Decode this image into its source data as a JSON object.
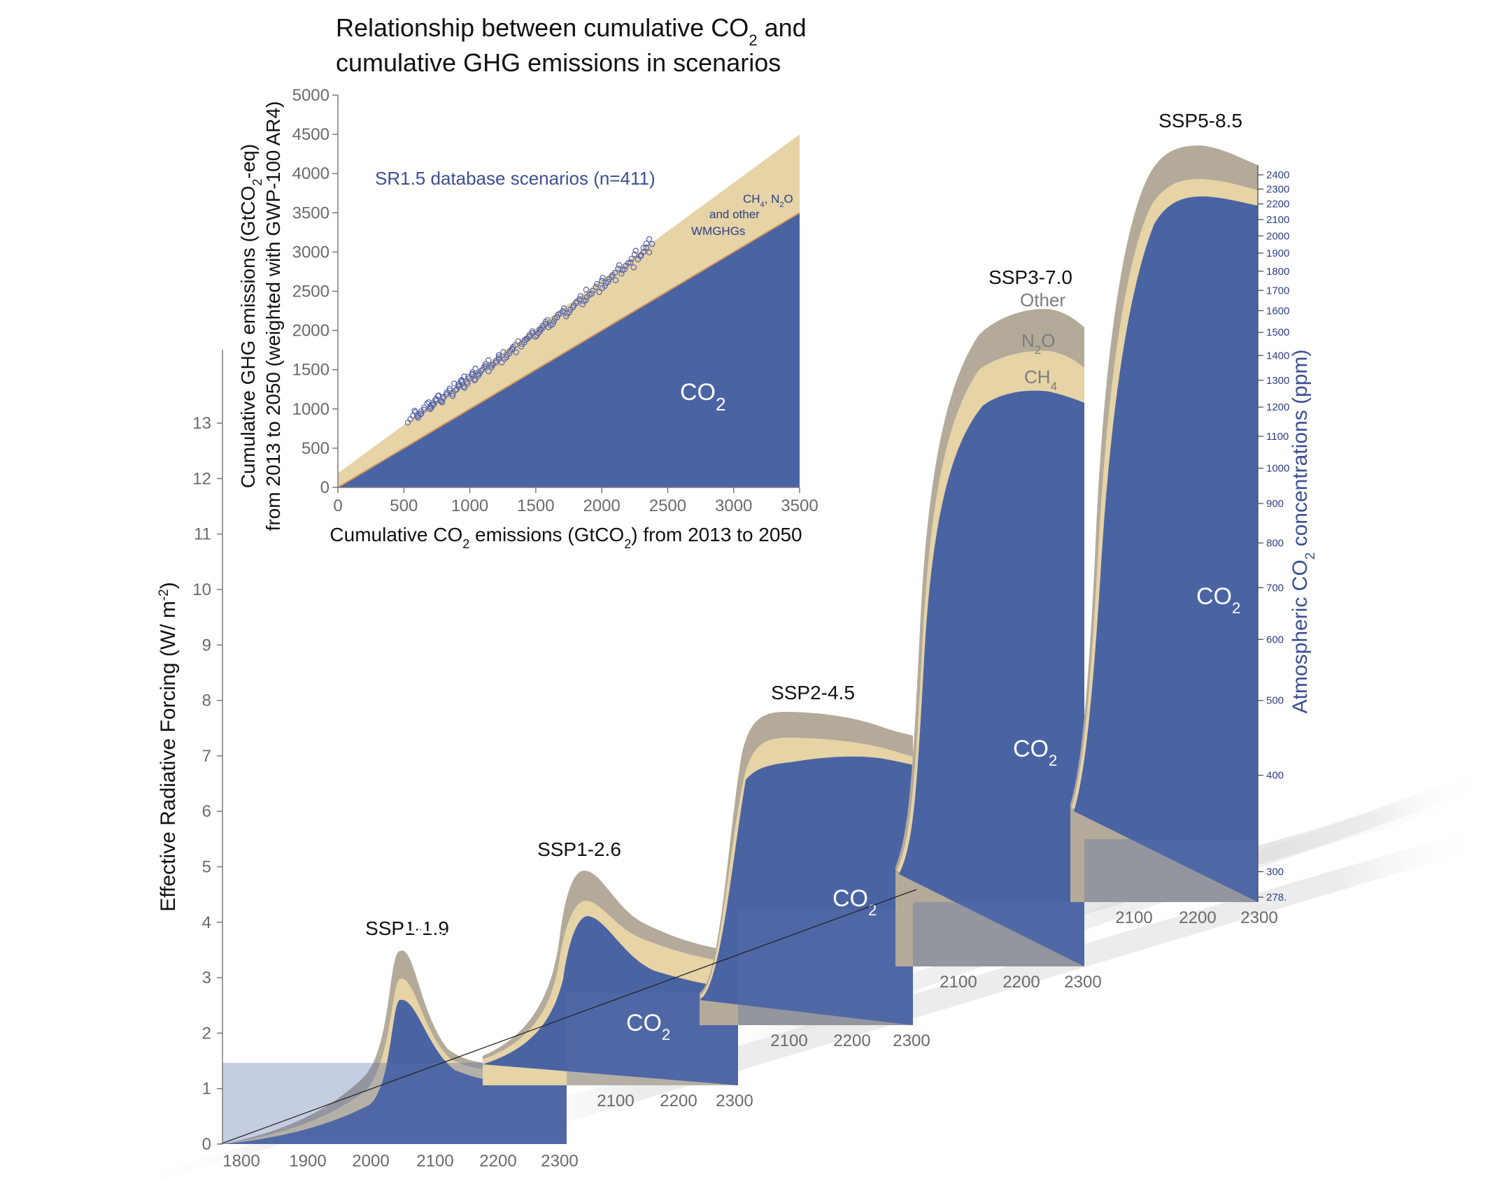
{
  "inset": {
    "title_line1": "Relationship between cumulative CO",
    "title_sub": "2",
    "title_line1_end": " and",
    "title_line2": "cumulative GHG emissions in scenarios",
    "ylabel_line1": "Cumulative GHG emissions (GtCO",
    "ylabel_line1_sub": "2",
    "ylabel_line1_end": "-eq)",
    "ylabel_line2": "from 2013 to 2050 (weighted with GWP-100 AR4)",
    "xlabel_start": "Cumulative CO",
    "xlabel_sub1": "2",
    "xlabel_mid": " emissions (GtCO",
    "xlabel_sub2": "2",
    "xlabel_end": ") from 2013 to 2050",
    "database_label": "SR1.5 database scenarios (n=411)",
    "band_label_1a": "CH",
    "band_label_1b": "4",
    "band_label_1c": ", N",
    "band_label_1d": "2",
    "band_label_1e": "O",
    "band_label_2": "and other",
    "band_label_3": "WMGHGs",
    "co2_label": "CO",
    "co2_sub": "2",
    "x_ticks": [
      "0",
      "500",
      "1000",
      "1500",
      "2000",
      "2500",
      "3000",
      "3500"
    ],
    "y_ticks": [
      "0",
      "500",
      "1000",
      "1500",
      "2000",
      "2500",
      "3000",
      "3500",
      "4000",
      "4500",
      "5000"
    ]
  },
  "main": {
    "ylabel_left_a": "Effective Radiative Forcing (W/ m",
    "ylabel_left_sup": "-2",
    "ylabel_left_b": ")",
    "ylabel_right_a": "Atmospheric CO",
    "ylabel_right_sub": "2",
    "ylabel_right_b": " concentrations (ppm)",
    "left_ticks": [
      "0",
      "1",
      "2",
      "3",
      "4",
      "5",
      "6",
      "7",
      "8",
      "9",
      "10",
      "11",
      "12",
      "13"
    ],
    "right_ticks": [
      "278.",
      "300",
      "400",
      "500",
      "600",
      "700",
      "800",
      "900",
      "1000",
      "1100",
      "1200",
      "1300",
      "1400",
      "1500",
      "1600",
      "1700",
      "1800",
      "1900",
      "2000",
      "2100",
      "2200",
      "2300",
      "2400"
    ],
    "co2_label": "CO",
    "co2_sub": "2",
    "gas_other": "Other",
    "gas_n2o_a": "N",
    "gas_n2o_sub": "2",
    "gas_n2o_b": "O",
    "gas_ch4_a": "CH",
    "gas_ch4_sub": "4"
  },
  "panels": [
    {
      "name": "SSP1-1.9",
      "x_ticks": [
        "1800",
        "1900",
        "2000",
        "2100",
        "2200",
        "2300"
      ]
    },
    {
      "name": "SSP1-2.6",
      "x_ticks": [
        "2100",
        "2200",
        "2300"
      ]
    },
    {
      "name": "SSP2-4.5",
      "x_ticks": [
        "2100",
        "2200",
        "2300"
      ]
    },
    {
      "name": "SSP3-7.0",
      "x_ticks": [
        "2100",
        "2200",
        "2300"
      ]
    },
    {
      "name": "SSP5-8.5",
      "x_ticks": [
        "2100",
        "2200",
        "2300"
      ]
    }
  ],
  "colors": {
    "co2": "#4a64a3",
    "ch4": "#e6d3a6",
    "n2o": "#c7bfa6",
    "other": "#b3aa9a",
    "text_blue": "#3c4f93"
  },
  "chart_data": [
    {
      "type": "scatter",
      "title": "Relationship between cumulative CO2 and cumulative GHG emissions in scenarios",
      "xlabel": "Cumulative CO2 emissions (GtCO2) from 2013 to 2050",
      "ylabel": "Cumulative GHG emissions (GtCO2-eq) from 2013 to 2050 (weighted with GWP-100 AR4)",
      "xlim": [
        0,
        3500
      ],
      "ylim": [
        0,
        5000
      ],
      "series": [
        {
          "name": "SR1.5 database scenarios (n=411)",
          "points": [
            [
              560,
              880
            ],
            [
              620,
              950
            ],
            [
              700,
              1050
            ],
            [
              760,
              1120
            ],
            [
              820,
              1180
            ],
            [
              900,
              1270
            ],
            [
              960,
              1340
            ],
            [
              1020,
              1420
            ],
            [
              1100,
              1500
            ],
            [
              1180,
              1590
            ],
            [
              1260,
              1680
            ],
            [
              1350,
              1790
            ],
            [
              1440,
              1900
            ],
            [
              1520,
              1990
            ],
            [
              1600,
              2090
            ],
            [
              1700,
              2210
            ],
            [
              1800,
              2330
            ],
            [
              1900,
              2460
            ],
            [
              2000,
              2580
            ],
            [
              2100,
              2700
            ],
            [
              2200,
              2840
            ],
            [
              2300,
              2990
            ],
            [
              2380,
              3150
            ]
          ]
        }
      ],
      "bands": [
        {
          "name": "CO2",
          "bottom": [
            [
              0,
              0
            ],
            [
              3500,
              0
            ]
          ],
          "top": [
            [
              0,
              0
            ],
            [
              3500,
              3500
            ]
          ]
        },
        {
          "name": "CH4, N2O and other WMGHGs",
          "bottom": [
            [
              0,
              0
            ],
            [
              3500,
              3500
            ]
          ],
          "top": [
            [
              0,
              180
            ],
            [
              3500,
              4500
            ]
          ]
        }
      ]
    },
    {
      "type": "area",
      "title": "",
      "ylabel": "Effective Radiative Forcing (W/ m-2)",
      "ylabel_right": "Atmospheric CO2 concentrations (ppm)",
      "ylim": [
        0,
        14
      ],
      "series_names": [
        "CO2",
        "CH4",
        "N2O",
        "Other"
      ],
      "scenarios": [
        {
          "name": "SSP1-1.9",
          "x": [
            1750,
            1850,
            1900,
            1950,
            2000,
            2020,
            2040,
            2060,
            2100,
            2150,
            2200,
            2300
          ],
          "co2": [
            0,
            0.2,
            0.35,
            0.6,
            1.2,
            2.0,
            2.6,
            2.2,
            1.2,
            0.55,
            0.35,
            0.3
          ],
          "total": [
            0,
            0.25,
            0.45,
            0.9,
            2.0,
            3.2,
            3.6,
            3.1,
            1.9,
            1.1,
            0.8,
            0.7
          ]
        },
        {
          "name": "SSP1-2.6",
          "x": [
            2000,
            2040,
            2060,
            2100,
            2150,
            2200,
            2300
          ],
          "co2": [
            1.0,
            2.9,
            3.5,
            2.7,
            1.6,
            1.0,
            0.8
          ],
          "total": [
            1.8,
            4.0,
            4.7,
            3.6,
            2.4,
            1.5,
            1.2
          ]
        },
        {
          "name": "SSP2-4.5",
          "x": [
            2000,
            2050,
            2100,
            2150,
            2200,
            2300
          ],
          "co2": [
            1.0,
            3.5,
            5.6,
            6.0,
            6.1,
            5.8
          ],
          "total": [
            1.8,
            4.8,
            6.6,
            7.0,
            6.9,
            6.5
          ]
        },
        {
          "name": "SSP3-7.0",
          "x": [
            2000,
            2050,
            2100,
            2150,
            2200,
            2300
          ],
          "co2": [
            1.0,
            3.0,
            7.5,
            9.0,
            9.5,
            9.2
          ],
          "total": [
            1.8,
            4.5,
            10.0,
            11.5,
            12.0,
            11.5
          ]
        },
        {
          "name": "SSP5-8.5",
          "x": [
            2000,
            2050,
            2100,
            2150,
            2200,
            2300
          ],
          "co2": [
            1.0,
            4.0,
            10.0,
            12.5,
            13.0,
            12.7
          ],
          "total": [
            1.8,
            5.0,
            12.0,
            14.0,
            14.5,
            14.2
          ]
        }
      ]
    }
  ]
}
